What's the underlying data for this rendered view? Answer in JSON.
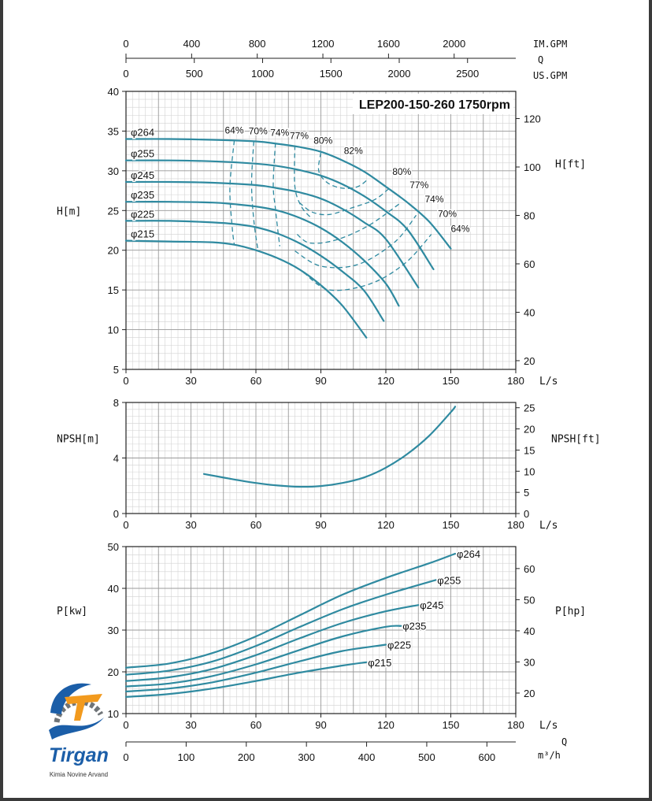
{
  "colors": {
    "curve": "#2f8aa0",
    "grid_major": "#9a9a9a",
    "grid_minor": "#d2d2d2",
    "axis": "#222222",
    "text": "#111111",
    "logo_blue": "#1b5ea8",
    "logo_orange": "#f29a1e",
    "logo_gray": "#6f7478"
  },
  "chart_data": [
    {
      "type": "line",
      "title": "LEP200-150-260 1750rpm",
      "xlabel": "L/s",
      "ylabel": "H[m]",
      "ylabel_right": "H[ft]",
      "xlim": [
        0,
        180
      ],
      "ylim": [
        5,
        40
      ],
      "x_ticks": [
        0,
        30,
        60,
        90,
        120,
        150,
        180
      ],
      "y_ticks": [
        5,
        10,
        15,
        20,
        25,
        30,
        35,
        40
      ],
      "y_right_ticks": [
        20,
        40,
        60,
        80,
        100,
        120
      ],
      "top_axes": {
        "q_label": "Q",
        "im_gpm": {
          "label": "IM.GPM",
          "ticks": [
            0,
            400,
            800,
            1200,
            1600,
            2000
          ]
        },
        "us_gpm": {
          "label": "US.GPM",
          "ticks": [
            0,
            500,
            1000,
            1500,
            2000,
            2500
          ]
        }
      },
      "grid": true,
      "series": [
        {
          "name": "φ264",
          "x": [
            0,
            20,
            40,
            60,
            70,
            80,
            90,
            100,
            110,
            120,
            130,
            140,
            150
          ],
          "y": [
            34.0,
            34.0,
            33.9,
            33.7,
            33.4,
            33.0,
            32.4,
            31.3,
            29.9,
            28.0,
            26.0,
            23.6,
            20.2
          ]
        },
        {
          "name": "φ255",
          "x": [
            0,
            20,
            40,
            60,
            70,
            80,
            90,
            100,
            110,
            120,
            130,
            142
          ],
          "y": [
            31.3,
            31.3,
            31.2,
            30.9,
            30.6,
            30.1,
            29.4,
            28.3,
            26.8,
            24.9,
            22.6,
            17.6
          ]
        },
        {
          "name": "φ245",
          "x": [
            0,
            20,
            40,
            60,
            70,
            80,
            90,
            100,
            110,
            120,
            135
          ],
          "y": [
            28.6,
            28.6,
            28.5,
            28.2,
            27.8,
            27.3,
            26.5,
            25.2,
            23.5,
            21.4,
            15.3
          ]
        },
        {
          "name": "φ235",
          "x": [
            0,
            20,
            40,
            50,
            60,
            70,
            80,
            90,
            100,
            110,
            120,
            126
          ],
          "y": [
            26.1,
            26.1,
            26.0,
            25.8,
            25.5,
            25.0,
            24.1,
            22.8,
            21.0,
            18.7,
            15.8,
            13.0
          ]
        },
        {
          "name": "φ225",
          "x": [
            0,
            20,
            40,
            50,
            60,
            70,
            80,
            90,
            100,
            110,
            119
          ],
          "y": [
            23.7,
            23.7,
            23.5,
            23.3,
            22.9,
            22.1,
            20.9,
            19.3,
            17.3,
            14.9,
            11.1
          ]
        },
        {
          "name": "φ215",
          "x": [
            0,
            20,
            40,
            50,
            60,
            70,
            80,
            90,
            100,
            111
          ],
          "y": [
            21.2,
            21.1,
            21.0,
            20.7,
            20.0,
            19.0,
            17.6,
            15.6,
            13.0,
            9.0
          ]
        }
      ],
      "efficiency_curves": [
        {
          "label": "64%",
          "x": [
            50,
            48,
            49,
            50
          ],
          "y": [
            33.8,
            28.0,
            23.0,
            20.7
          ]
        },
        {
          "label": "70%",
          "x": [
            59,
            58,
            59,
            61
          ],
          "y": [
            33.7,
            28.4,
            23.8,
            19.9
          ]
        },
        {
          "label": "74%",
          "x": [
            69,
            68,
            69,
            71
          ],
          "y": [
            33.5,
            28.3,
            25.2,
            20.5
          ]
        },
        {
          "label": "77%",
          "x": [
            78,
            78,
            81,
            85
          ],
          "y": [
            33.2,
            28.0,
            25.5,
            24.2
          ]
        },
        {
          "label": "80%",
          "x": [
            90,
            89,
            93,
            100,
            107,
            112
          ],
          "y": [
            32.3,
            30.0,
            28.5,
            27.8,
            28.0,
            29.0
          ]
        },
        {
          "label": "77%",
          "x": [
            80,
            86,
            94,
            105,
            115,
            122
          ],
          "y": [
            26.0,
            24.8,
            24.5,
            25.4,
            26.4,
            27.9
          ]
        },
        {
          "label": "74%",
          "x": [
            79,
            85,
            97,
            112,
            127
          ],
          "y": [
            22.0,
            20.9,
            21.3,
            23.1,
            26.0
          ]
        },
        {
          "label": "70%",
          "x": [
            78,
            90,
            107,
            124,
            134
          ],
          "y": [
            19.9,
            18.0,
            18.2,
            21.0,
            24.4
          ]
        },
        {
          "label": "64%",
          "x": [
            82,
            94,
            113,
            129,
            141
          ],
          "y": [
            17.2,
            15.0,
            15.8,
            18.4,
            22.0
          ]
        }
      ],
      "efficiency_top_labels": [
        {
          "label": "64%",
          "x": 50,
          "y": 34.7
        },
        {
          "label": "70%",
          "x": 61,
          "y": 34.6
        },
        {
          "label": "74%",
          "x": 71,
          "y": 34.4
        },
        {
          "label": "77%",
          "x": 80,
          "y": 34.0
        },
        {
          "label": "80%",
          "x": 91,
          "y": 33.4
        },
        {
          "label": "82%",
          "x": 105,
          "y": 32.1
        }
      ],
      "efficiency_right_labels": [
        {
          "label": "80%",
          "x": 123,
          "y": 29.5
        },
        {
          "label": "77%",
          "x": 131,
          "y": 27.8
        },
        {
          "label": "74%",
          "x": 138,
          "y": 26.0
        },
        {
          "label": "70%",
          "x": 144,
          "y": 24.2
        },
        {
          "label": "64%",
          "x": 150,
          "y": 22.3
        }
      ]
    },
    {
      "type": "line",
      "title": "",
      "xlabel": "L/s",
      "ylabel": "NPSH[m]",
      "ylabel_right": "NPSH[ft]",
      "xlim": [
        0,
        180
      ],
      "ylim": [
        0,
        8
      ],
      "x_ticks": [
        0,
        30,
        60,
        90,
        120,
        150,
        180
      ],
      "y_ticks": [
        0,
        4,
        8
      ],
      "y_right_ticks": [
        0,
        5,
        10,
        15,
        20,
        25
      ],
      "grid": true,
      "series": [
        {
          "name": "",
          "x": [
            36,
            50,
            60,
            70,
            80,
            90,
            100,
            110,
            120,
            130,
            140,
            150,
            152
          ],
          "y": [
            2.85,
            2.45,
            2.2,
            2.02,
            1.93,
            1.98,
            2.2,
            2.6,
            3.3,
            4.3,
            5.6,
            7.3,
            7.7
          ]
        }
      ]
    },
    {
      "type": "line",
      "title": "",
      "xlabel": "L/s",
      "ylabel": "P[kw]",
      "ylabel_right": "P[hp]",
      "xlim": [
        0,
        180
      ],
      "ylim": [
        10,
        50
      ],
      "x_ticks": [
        0,
        30,
        60,
        90,
        120,
        150,
        180
      ],
      "y_ticks": [
        10,
        20,
        30,
        40,
        50
      ],
      "y_right_ticks": [
        20,
        30,
        40,
        50,
        60
      ],
      "bottom_axis": {
        "q_label": "Q",
        "unit": "m³/h",
        "ticks": [
          0,
          100,
          200,
          300,
          400,
          500,
          600
        ]
      },
      "grid": true,
      "series": [
        {
          "name": "φ264",
          "x": [
            0,
            20,
            40,
            60,
            80,
            100,
            120,
            140,
            152
          ],
          "y": [
            21.0,
            22.0,
            24.5,
            28.5,
            33.5,
            38.5,
            42.5,
            46.0,
            48.3
          ]
        },
        {
          "name": "φ255",
          "x": [
            0,
            20,
            40,
            60,
            80,
            100,
            120,
            143
          ],
          "y": [
            19.3,
            20.3,
            22.5,
            26.2,
            30.7,
            35.0,
            38.5,
            42.0
          ]
        },
        {
          "name": "φ245",
          "x": [
            0,
            20,
            40,
            60,
            80,
            100,
            120,
            135
          ],
          "y": [
            17.8,
            18.7,
            20.7,
            24.0,
            28.0,
            31.7,
            34.5,
            36.0
          ]
        },
        {
          "name": "φ235",
          "x": [
            0,
            20,
            40,
            60,
            80,
            100,
            120,
            127
          ],
          "y": [
            16.5,
            17.2,
            19.0,
            21.8,
            25.2,
            28.5,
            30.8,
            31.0
          ]
        },
        {
          "name": "φ225",
          "x": [
            0,
            20,
            40,
            60,
            80,
            100,
            120
          ],
          "y": [
            15.3,
            16.0,
            17.5,
            19.8,
            22.5,
            25.0,
            26.5
          ]
        },
        {
          "name": "φ215",
          "x": [
            0,
            20,
            40,
            60,
            80,
            100,
            111
          ],
          "y": [
            14.0,
            14.7,
            16.0,
            17.8,
            19.8,
            21.5,
            22.3
          ]
        }
      ]
    }
  ],
  "logo": {
    "name": "Tirgan",
    "tagline": "Kimia Novine Arvand"
  }
}
